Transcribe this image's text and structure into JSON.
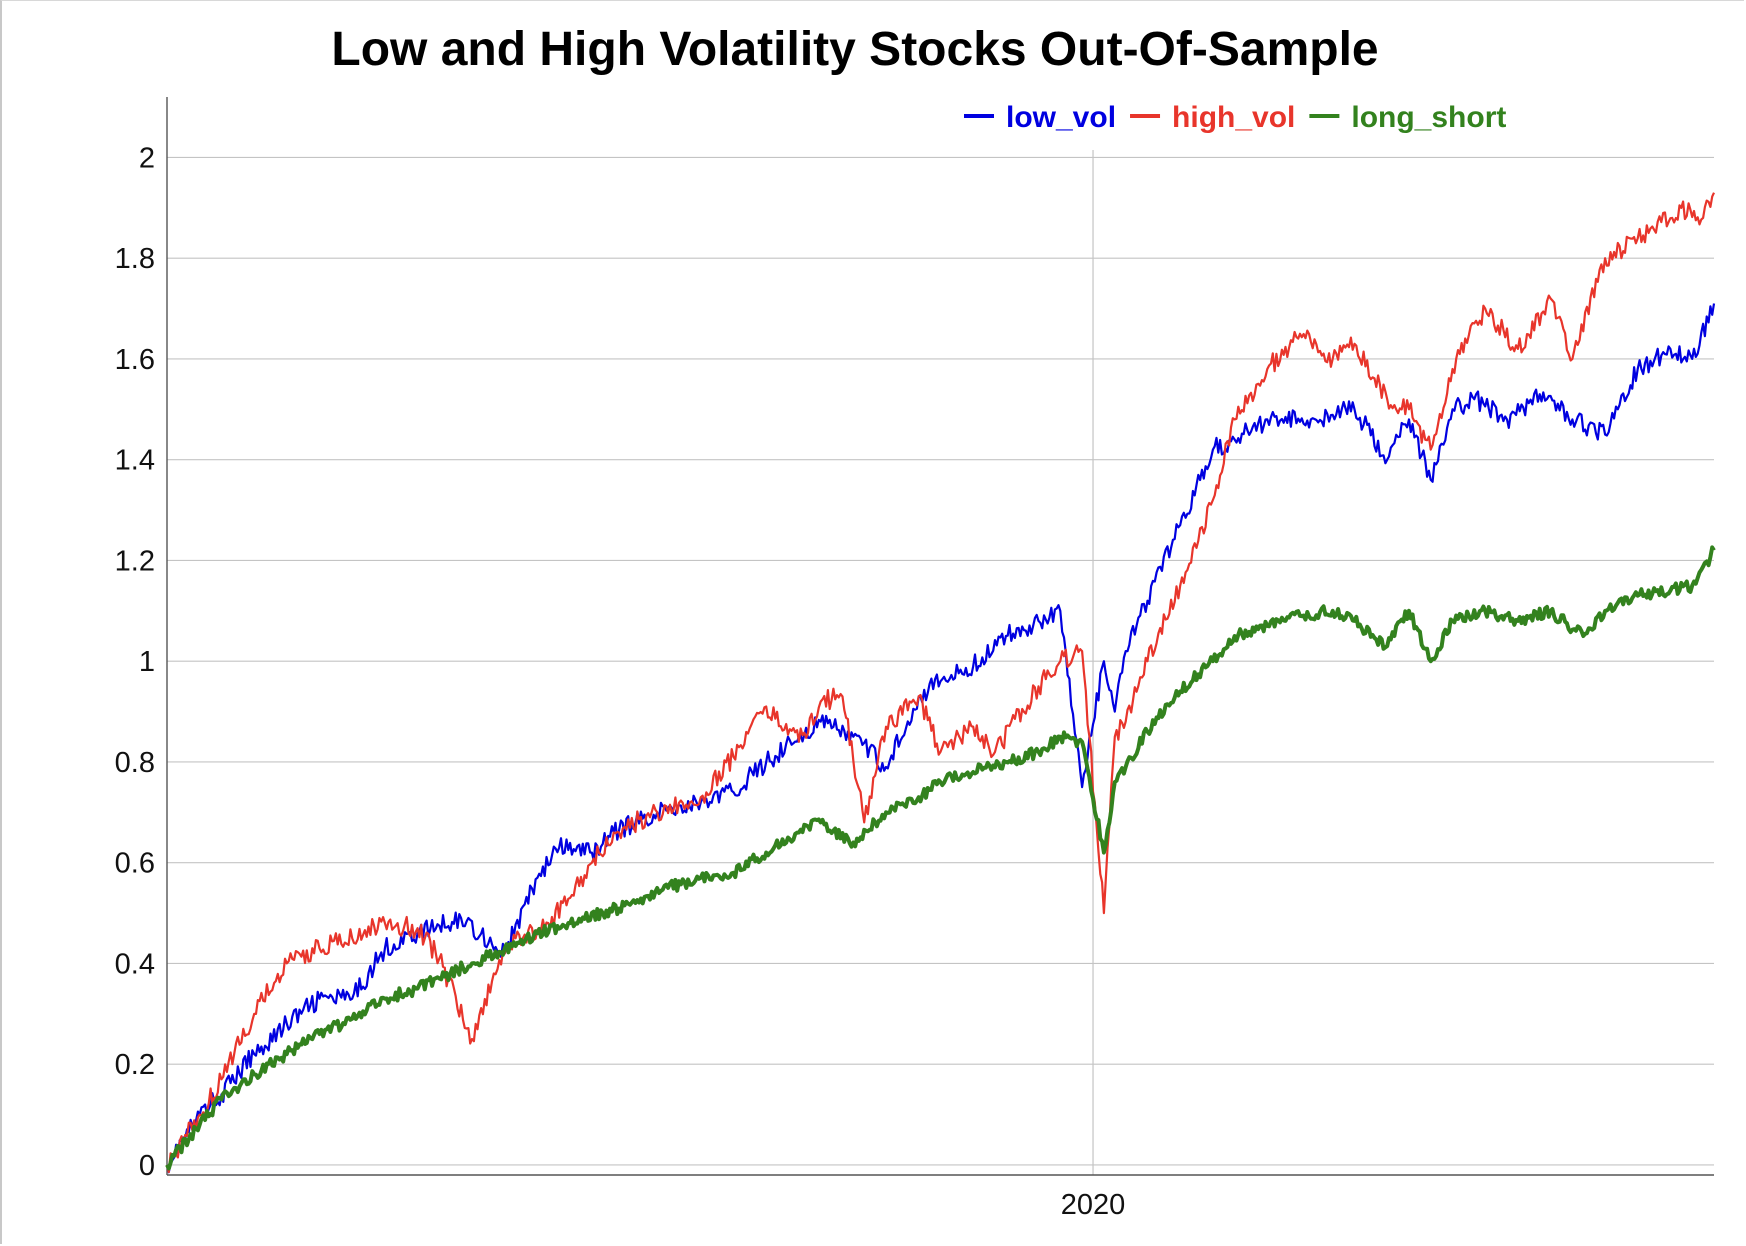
{
  "chart_data": {
    "type": "line",
    "title": "Low and High Volatility Stocks Out-Of-Sample",
    "xlabel": "",
    "ylabel": "",
    "x_tick_labels": [
      "2020"
    ],
    "x_ticks": [
      2020.0
    ],
    "xlim": [
      2015.75,
      2022.85
    ],
    "ylim": [
      -0.02,
      2.12
    ],
    "y_ticks": [
      0,
      0.2,
      0.4,
      0.6,
      0.8,
      1,
      1.2,
      1.4,
      1.6,
      1.8,
      2
    ],
    "y_tick_labels": [
      "0",
      "0.2",
      "0.4",
      "0.6",
      "0.8",
      "1",
      "1.2",
      "1.4",
      "1.6",
      "1.8",
      "2"
    ],
    "grid": true,
    "legend_position": "top-right",
    "series": [
      {
        "name": "low_vol",
        "color": "#0000e0",
        "x": [
          2015.75,
          2015.9,
          2016.0,
          2016.15,
          2016.3,
          2016.45,
          2016.6,
          2016.75,
          2016.9,
          2017.1,
          2017.3,
          2017.45,
          2017.55,
          2017.7,
          2017.8,
          2018.0,
          2018.2,
          2018.35,
          2018.5,
          2018.65,
          2018.75,
          2018.9,
          2019.05,
          2019.2,
          2019.3,
          2019.45,
          2019.6,
          2019.75,
          2019.85,
          2019.95,
          2020.05,
          2020.1,
          2020.15,
          2020.25,
          2020.4,
          2020.55,
          2020.65,
          2020.8,
          2021.0,
          2021.2,
          2021.35,
          2021.45,
          2021.55,
          2021.65,
          2021.75,
          2021.9,
          2022.05,
          2022.2,
          2022.35,
          2022.5,
          2022.65,
          2022.75,
          2022.85
        ],
        "y": [
          0.0,
          0.1,
          0.14,
          0.22,
          0.28,
          0.33,
          0.33,
          0.43,
          0.46,
          0.49,
          0.42,
          0.57,
          0.63,
          0.62,
          0.66,
          0.7,
          0.72,
          0.74,
          0.8,
          0.85,
          0.88,
          0.85,
          0.79,
          0.93,
          0.96,
          0.99,
          1.05,
          1.08,
          1.1,
          0.75,
          1.0,
          0.9,
          1.02,
          1.12,
          1.27,
          1.42,
          1.44,
          1.48,
          1.48,
          1.5,
          1.4,
          1.48,
          1.36,
          1.5,
          1.52,
          1.48,
          1.53,
          1.48,
          1.45,
          1.58,
          1.62,
          1.6,
          1.71
        ]
      },
      {
        "name": "high_vol",
        "color": "#e8352b",
        "x": [
          2015.75,
          2015.9,
          2016.0,
          2016.15,
          2016.3,
          2016.45,
          2016.6,
          2016.75,
          2016.9,
          2017.0,
          2017.15,
          2017.25,
          2017.35,
          2017.5,
          2017.6,
          2017.7,
          2017.8,
          2018.0,
          2018.2,
          2018.35,
          2018.5,
          2018.65,
          2018.75,
          2018.85,
          2018.95,
          2019.05,
          2019.2,
          2019.3,
          2019.45,
          2019.55,
          2019.75,
          2019.85,
          2019.95,
          2020.05,
          2020.1,
          2020.15,
          2020.25,
          2020.4,
          2020.55,
          2020.65,
          2020.8,
          2020.95,
          2021.1,
          2021.2,
          2021.35,
          2021.45,
          2021.55,
          2021.65,
          2021.8,
          2021.95,
          2022.1,
          2022.2,
          2022.35,
          2022.55,
          2022.7,
          2022.8,
          2022.85
        ],
        "y": [
          0.0,
          0.1,
          0.17,
          0.3,
          0.4,
          0.43,
          0.45,
          0.48,
          0.47,
          0.41,
          0.25,
          0.38,
          0.45,
          0.48,
          0.53,
          0.6,
          0.66,
          0.7,
          0.73,
          0.81,
          0.91,
          0.84,
          0.92,
          0.93,
          0.68,
          0.87,
          0.93,
          0.82,
          0.87,
          0.82,
          0.95,
          1.0,
          1.02,
          0.5,
          0.85,
          0.88,
          1.0,
          1.15,
          1.32,
          1.48,
          1.58,
          1.65,
          1.6,
          1.63,
          1.52,
          1.5,
          1.42,
          1.58,
          1.7,
          1.62,
          1.72,
          1.6,
          1.8,
          1.85,
          1.9,
          1.88,
          1.93
        ]
      },
      {
        "name": "long_short",
        "color": "#33821e",
        "x": [
          2015.75,
          2015.9,
          2016.0,
          2016.15,
          2016.3,
          2016.45,
          2016.6,
          2016.75,
          2016.9,
          2017.0,
          2017.15,
          2017.3,
          2017.45,
          2017.6,
          2017.75,
          2017.9,
          2018.05,
          2018.2,
          2018.35,
          2018.5,
          2018.65,
          2018.75,
          2018.9,
          2019.05,
          2019.2,
          2019.3,
          2019.45,
          2019.6,
          2019.75,
          2019.85,
          2019.95,
          2020.05,
          2020.1,
          2020.15,
          2020.25,
          2020.4,
          2020.55,
          2020.65,
          2020.8,
          2020.95,
          2021.1,
          2021.2,
          2021.35,
          2021.45,
          2021.55,
          2021.65,
          2021.8,
          2021.95,
          2022.1,
          2022.25,
          2022.35,
          2022.5,
          2022.65,
          2022.75,
          2022.85
        ],
        "y": [
          0.0,
          0.08,
          0.13,
          0.18,
          0.22,
          0.26,
          0.29,
          0.33,
          0.35,
          0.37,
          0.4,
          0.43,
          0.46,
          0.48,
          0.5,
          0.52,
          0.55,
          0.57,
          0.58,
          0.62,
          0.66,
          0.68,
          0.64,
          0.7,
          0.73,
          0.76,
          0.78,
          0.8,
          0.82,
          0.85,
          0.84,
          0.62,
          0.76,
          0.79,
          0.86,
          0.94,
          1.0,
          1.05,
          1.07,
          1.09,
          1.1,
          1.08,
          1.03,
          1.1,
          1.0,
          1.08,
          1.1,
          1.08,
          1.1,
          1.05,
          1.1,
          1.13,
          1.14,
          1.15,
          1.22
        ]
      }
    ]
  }
}
